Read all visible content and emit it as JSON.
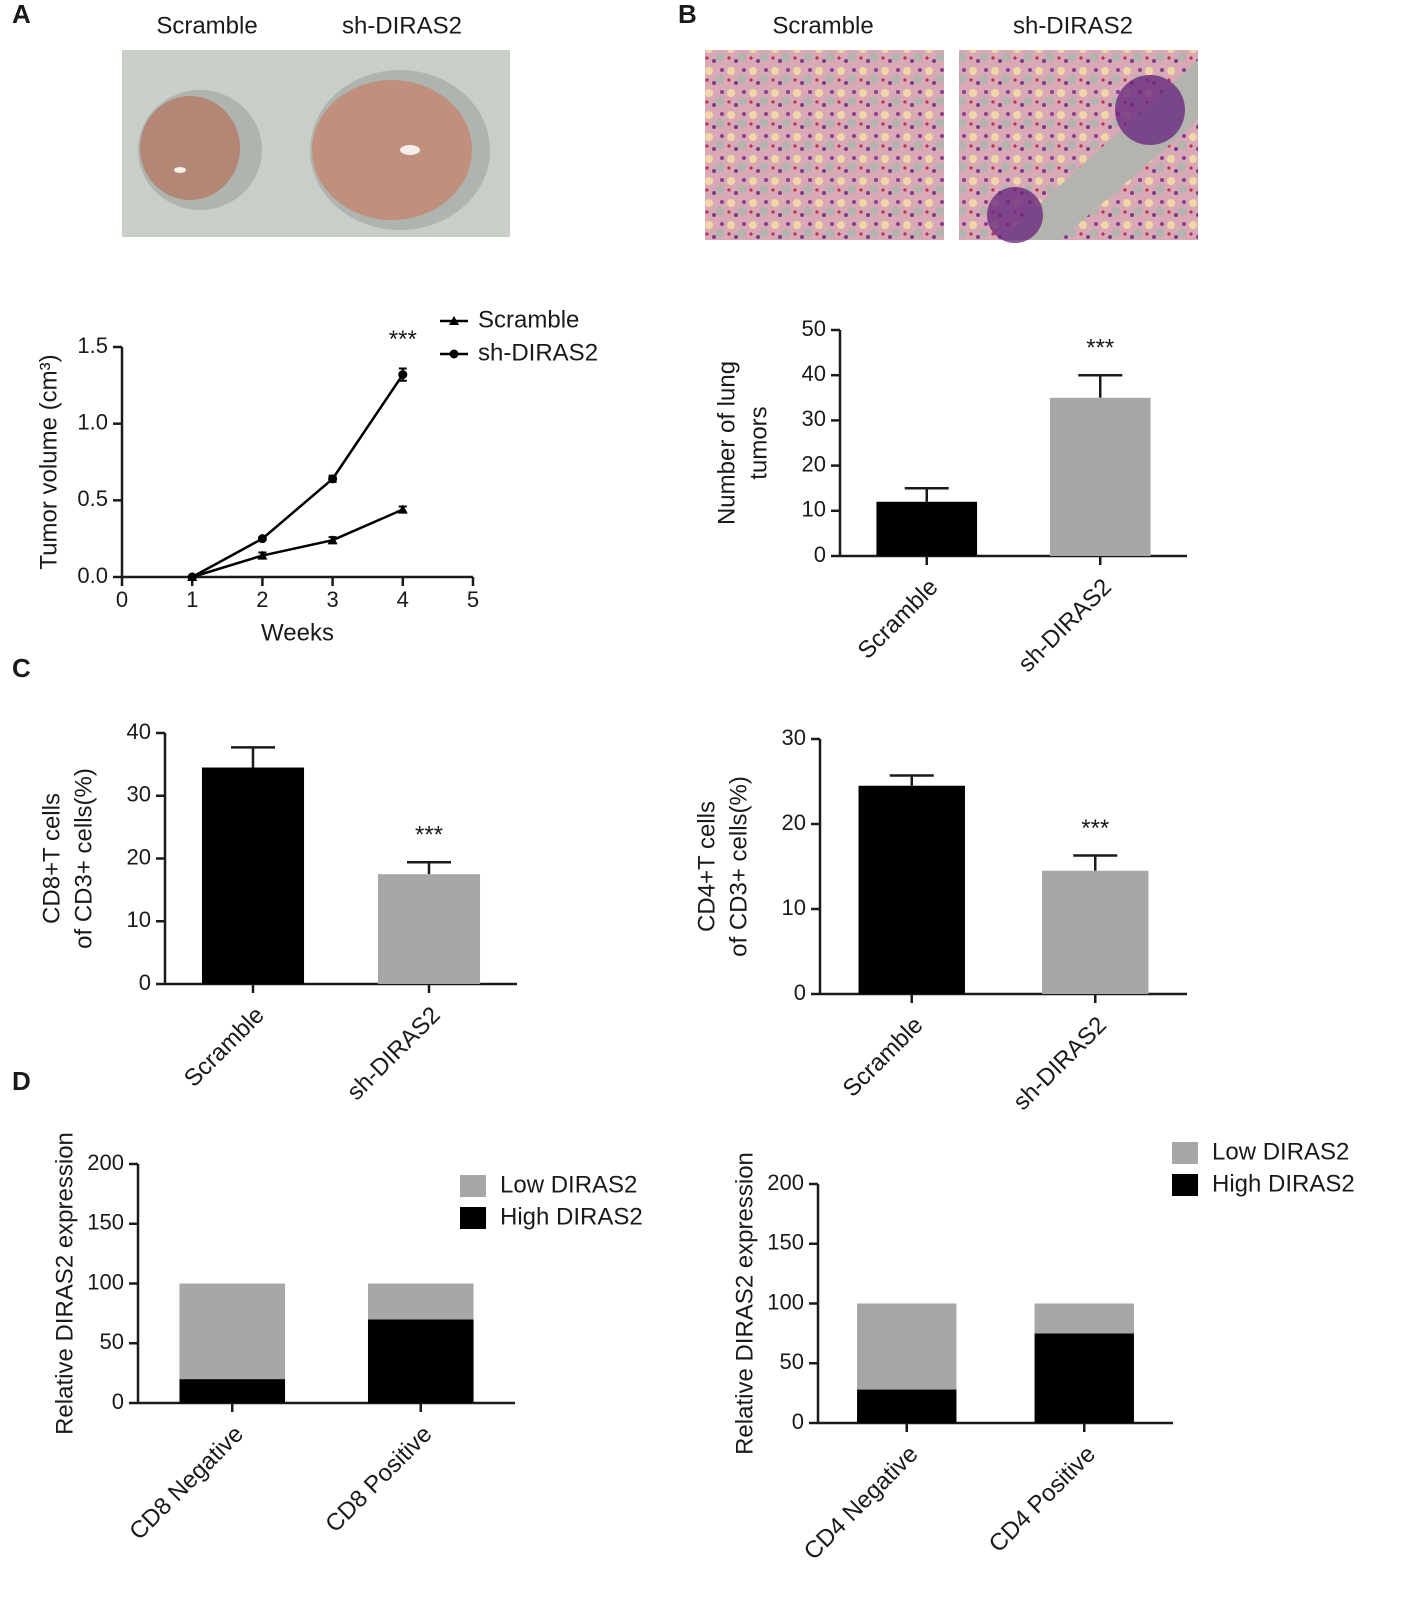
{
  "panel_labels": [
    "A",
    "B",
    "C",
    "D"
  ],
  "photo_captions": [
    [
      "Scramble",
      "sh-DIRAS2"
    ],
    [
      "Scramble",
      "sh-DIRAS2"
    ]
  ],
  "chart_data": [
    {
      "type": "line",
      "xlabel": "Weeks",
      "ylabel": "Tumor volume (cm³)",
      "annotation": "***",
      "x": [
        1,
        2,
        3,
        4
      ],
      "xlim": [
        0,
        5
      ],
      "xticks": [
        0,
        1,
        2,
        3,
        4,
        5
      ],
      "ylim": [
        0,
        1.5
      ],
      "yticks": [
        {
          "value": 0,
          "label": "0.0"
        },
        0.5,
        {
          "value": 1,
          "label": "1.0"
        },
        1.5
      ],
      "series": [
        {
          "name": "Scramble",
          "color": "#000000",
          "marker": "triangle",
          "values": [
            0,
            0.14,
            0.24,
            0.44
          ],
          "errors": [
            0.01,
            0.02,
            0.02,
            0.02
          ]
        },
        {
          "name": "sh-DIRAS2",
          "color": "#000000",
          "marker": "circle",
          "values": [
            0,
            0.25,
            0.64,
            1.32
          ],
          "errors": [
            0.01,
            0.01,
            0.02,
            0.04
          ]
        }
      ]
    },
    {
      "type": "bar",
      "ylabel": [
        "Number of lung",
        "tumors"
      ],
      "annotation": "***",
      "categories": [
        "Scramble",
        "sh-DIRAS2"
      ],
      "values": [
        12,
        35
      ],
      "errors": [
        3,
        5
      ],
      "colors": [
        "#000000",
        "#a7a7a9"
      ],
      "ylim": [
        0,
        50
      ],
      "yticks": [
        0,
        10,
        20,
        30,
        40,
        50
      ]
    },
    {
      "type": "bar",
      "ylabel": [
        "CD8+T cells",
        "of CD3+ cells(%)"
      ],
      "annotation": "***",
      "categories": [
        "Scramble",
        "sh-DIRAS2"
      ],
      "values": [
        34.5,
        17.5
      ],
      "errors": [
        3.2,
        1.9
      ],
      "colors": [
        "#000000",
        "#a7a7a9"
      ],
      "ylim": [
        0,
        40
      ],
      "yticks": [
        0,
        10,
        20,
        30,
        40
      ]
    },
    {
      "type": "bar",
      "ylabel": [
        "CD4+T cells",
        "of CD3+ cells(%)"
      ],
      "annotation": "***",
      "categories": [
        "Scramble",
        "sh-DIRAS2"
      ],
      "values": [
        24.5,
        14.5
      ],
      "errors": [
        1.2,
        1.8
      ],
      "colors": [
        "#000000",
        "#a7a7a9"
      ],
      "ylim": [
        0,
        30
      ],
      "yticks": [
        0,
        10,
        20,
        30
      ]
    },
    {
      "type": "stacked",
      "ylabel": "Relative DIRAS2 expression",
      "categories": [
        "CD8 Negative",
        "CD8 Positive"
      ],
      "ylim": [
        0,
        200
      ],
      "yticks": [
        0,
        50,
        100,
        150,
        200
      ],
      "series": [
        {
          "name": "Low DIRAS2",
          "color": "#a7a7a9",
          "values": [
            80,
            30
          ]
        },
        {
          "name": "High DIRAS2",
          "color": "#000000",
          "values": [
            20,
            70
          ]
        }
      ]
    },
    {
      "type": "stacked",
      "ylabel": "Relative DIRAS2 expression",
      "categories": [
        "CD4 Negative",
        "CD4 Positive"
      ],
      "ylim": [
        0,
        200
      ],
      "yticks": [
        0,
        50,
        100,
        150,
        200
      ],
      "series": [
        {
          "name": "Low DIRAS2",
          "color": "#a7a7a9",
          "values": [
            72,
            25
          ]
        },
        {
          "name": "High DIRAS2",
          "color": "#000000",
          "values": [
            28,
            75
          ]
        }
      ]
    }
  ]
}
